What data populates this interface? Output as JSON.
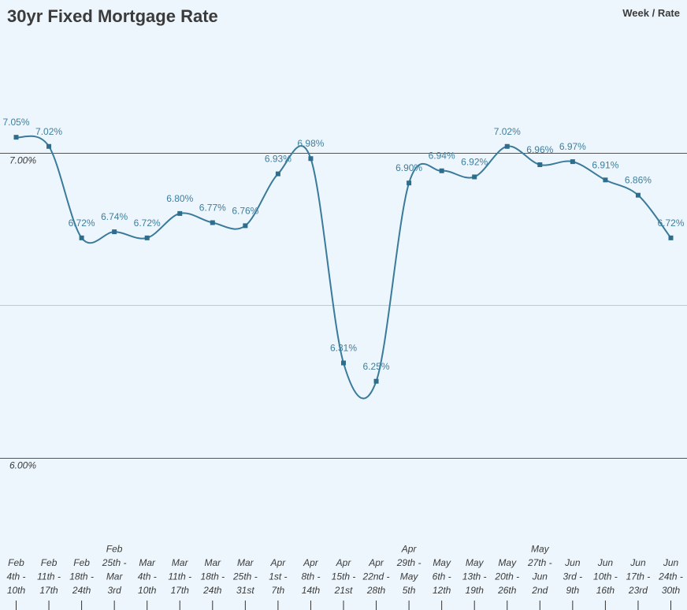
{
  "header": {
    "title": "30yr Fixed Mortgage Rate",
    "axis_x_name": "Week",
    "separator": "/",
    "axis_y_name": "Rate"
  },
  "chart_data": {
    "type": "line",
    "title": "30yr Fixed Mortgage Rate",
    "xlabel": "Week",
    "ylabel": "Rate",
    "ylim": [
      5.5,
      7.5
    ],
    "y_tick_labels": [
      {
        "value": 7.0,
        "label": "7.00%"
      },
      {
        "value": 6.0,
        "label": "6.00%"
      }
    ],
    "gridlines": [
      5.5,
      6.0,
      6.5,
      7.0,
      7.5
    ],
    "grid": true,
    "legend": "none",
    "series_color": "#3a7a9a",
    "categories": [
      [
        "Feb",
        "4th -",
        "10th"
      ],
      [
        "Feb",
        "11th -",
        "17th"
      ],
      [
        "Feb",
        "18th -",
        "24th"
      ],
      [
        "Feb",
        "25th -",
        "Mar",
        "3rd"
      ],
      [
        "Mar",
        "4th -",
        "10th"
      ],
      [
        "Mar",
        "11th -",
        "17th"
      ],
      [
        "Mar",
        "18th -",
        "24th"
      ],
      [
        "Mar",
        "25th -",
        "31st"
      ],
      [
        "Apr",
        "1st -",
        "7th"
      ],
      [
        "Apr",
        "8th -",
        "14th"
      ],
      [
        "Apr",
        "15th -",
        "21st"
      ],
      [
        "Apr",
        "22nd -",
        "28th"
      ],
      [
        "Apr",
        "29th -",
        "May",
        "5th"
      ],
      [
        "May",
        "6th -",
        "12th"
      ],
      [
        "May",
        "13th -",
        "19th"
      ],
      [
        "May",
        "20th -",
        "26th"
      ],
      [
        "May",
        "27th -",
        "Jun",
        "2nd"
      ],
      [
        "Jun",
        "3rd -",
        "9th"
      ],
      [
        "Jun",
        "10th -",
        "16th"
      ],
      [
        "Jun",
        "17th -",
        "23rd"
      ],
      [
        "Jun",
        "24th -",
        "30th"
      ]
    ],
    "values": [
      7.05,
      7.02,
      6.72,
      6.74,
      6.72,
      6.8,
      6.77,
      6.76,
      6.93,
      6.98,
      6.31,
      6.25,
      6.9,
      6.94,
      6.92,
      7.02,
      6.96,
      6.97,
      6.91,
      6.86,
      6.72
    ],
    "data_labels": [
      "7.05%",
      "7.02%",
      "6.72%",
      "6.74%",
      "6.72%",
      "6.80%",
      "6.77%",
      "6.76%",
      "6.93%",
      "6.98%",
      "6.31%",
      "6.25%",
      "6.90%",
      "6.94%",
      "6.92%",
      "7.02%",
      "6.96%",
      "6.97%",
      "6.91%",
      "6.86%",
      "6.72%"
    ]
  }
}
